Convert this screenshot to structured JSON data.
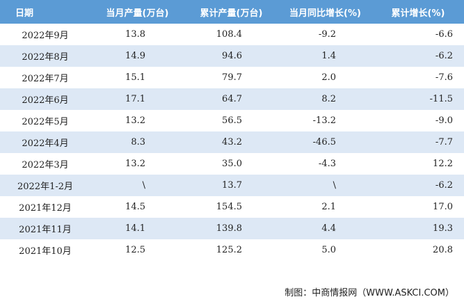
{
  "table": {
    "header": [
      "日期",
      "当月产量(万台)",
      "累计产量(万台)",
      "当月同比增长(%)",
      "累计增长(%)"
    ],
    "rows": [
      [
        "2022年9月",
        "13.8",
        "108.4",
        "-9.2",
        "-6.6"
      ],
      [
        "2022年8月",
        "14.9",
        "94.6",
        "1.4",
        "-6.2"
      ],
      [
        "2022年7月",
        "15.1",
        "79.7",
        "2.0",
        "-7.6"
      ],
      [
        "2022年6月",
        "17.1",
        "64.7",
        "8.2",
        "-11.5"
      ],
      [
        "2022年5月",
        "13.2",
        "56.5",
        "-13.2",
        "-9.0"
      ],
      [
        "2022年4月",
        "8.3",
        "43.2",
        "-46.5",
        "-7.7"
      ],
      [
        "2022年3月",
        "13.2",
        "35.0",
        "-4.3",
        "12.2"
      ],
      [
        "2022年1-2月",
        "\\",
        "13.7",
        "\\",
        "-6.2"
      ],
      [
        "2021年12月",
        "14.5",
        "154.5",
        "2.1",
        "17.0"
      ],
      [
        "2021年11月",
        "14.1",
        "139.8",
        "4.4",
        "19.3"
      ],
      [
        "2021年10月",
        "12.5",
        "125.2",
        "5.0",
        "20.8"
      ]
    ]
  },
  "footer": {
    "source": "制图：中商情报网（WWW.ASKCI.COM）"
  }
}
